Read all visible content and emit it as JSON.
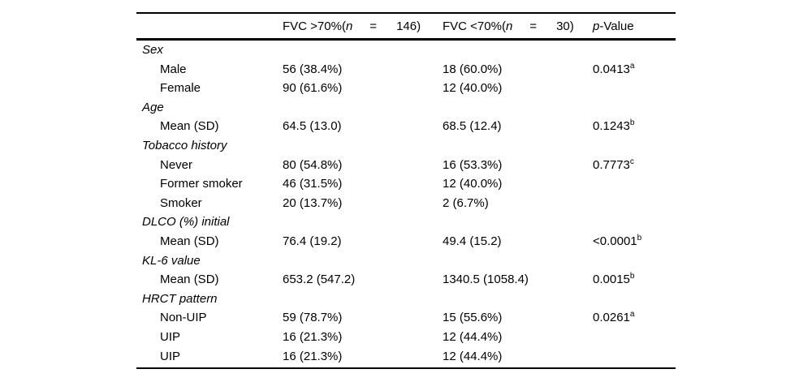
{
  "page": {
    "background_color": "#ffffff",
    "text_color": "#000000"
  },
  "table": {
    "header": {
      "label_col": "",
      "fvc_gt70": {
        "pre": "FVC >70%(",
        "n": "n",
        "eq": "=",
        "count": "146)"
      },
      "fvc_lt70": {
        "pre": "FVC <70%(",
        "n": "n",
        "eq": "=",
        "count": "30)"
      },
      "p_value": {
        "italic": "p",
        "rest": "-Value"
      }
    },
    "rows": [
      {
        "type": "category",
        "label": "Sex",
        "fvc_gt70": "",
        "fvc_lt70": "",
        "p": "",
        "sup": ""
      },
      {
        "type": "item",
        "label": "Male",
        "fvc_gt70": "56 (38.4%)",
        "fvc_lt70": "18 (60.0%)",
        "p": "0.0413",
        "sup": "a"
      },
      {
        "type": "item",
        "label": "Female",
        "fvc_gt70": "90 (61.6%)",
        "fvc_lt70": "12 (40.0%)",
        "p": "",
        "sup": ""
      },
      {
        "type": "category",
        "label": "Age",
        "fvc_gt70": "",
        "fvc_lt70": "",
        "p": "",
        "sup": ""
      },
      {
        "type": "item",
        "label": "Mean (SD)",
        "fvc_gt70": "64.5 (13.0)",
        "fvc_lt70": "68.5 (12.4)",
        "p": "0.1243",
        "sup": "b"
      },
      {
        "type": "category",
        "label": "Tobacco history",
        "fvc_gt70": "",
        "fvc_lt70": "",
        "p": "",
        "sup": ""
      },
      {
        "type": "item",
        "label": "Never",
        "fvc_gt70": "80 (54.8%)",
        "fvc_lt70": "16 (53.3%)",
        "p": "0.7773",
        "sup": "c"
      },
      {
        "type": "item",
        "label": "Former smoker",
        "fvc_gt70": "46 (31.5%)",
        "fvc_lt70": "12 (40.0%)",
        "p": "",
        "sup": ""
      },
      {
        "type": "item",
        "label": "Smoker",
        "fvc_gt70": "20 (13.7%)",
        "fvc_lt70": "2 (6.7%)",
        "p": "",
        "sup": ""
      },
      {
        "type": "category",
        "label": "DLCO (%) initial",
        "fvc_gt70": "",
        "fvc_lt70": "",
        "p": "",
        "sup": ""
      },
      {
        "type": "item",
        "label": "Mean (SD)",
        "fvc_gt70": "76.4 (19.2)",
        "fvc_lt70": "49.4 (15.2)",
        "p": "<0.0001",
        "sup": "b"
      },
      {
        "type": "category",
        "label": "KL-6 value",
        "fvc_gt70": "",
        "fvc_lt70": "",
        "p": "",
        "sup": ""
      },
      {
        "type": "item",
        "label": "Mean (SD)",
        "fvc_gt70": "653.2 (547.2)",
        "fvc_lt70": "1340.5 (1058.4)",
        "p": "0.0015",
        "sup": "b"
      },
      {
        "type": "category",
        "label": "HRCT pattern",
        "fvc_gt70": "",
        "fvc_lt70": "",
        "p": "",
        "sup": ""
      },
      {
        "type": "item",
        "label": "Non-UIP",
        "fvc_gt70": "59 (78.7%)",
        "fvc_lt70": "15 (55.6%)",
        "p": "0.0261",
        "sup": "a"
      },
      {
        "type": "item",
        "label": "UIP",
        "fvc_gt70": "16 (21.3%)",
        "fvc_lt70": "12 (44.4%)",
        "p": "",
        "sup": ""
      },
      {
        "type": "item",
        "label": "UIP",
        "fvc_gt70": "16 (21.3%)",
        "fvc_lt70": "12 (44.4%)",
        "p": "",
        "sup": ""
      }
    ]
  }
}
